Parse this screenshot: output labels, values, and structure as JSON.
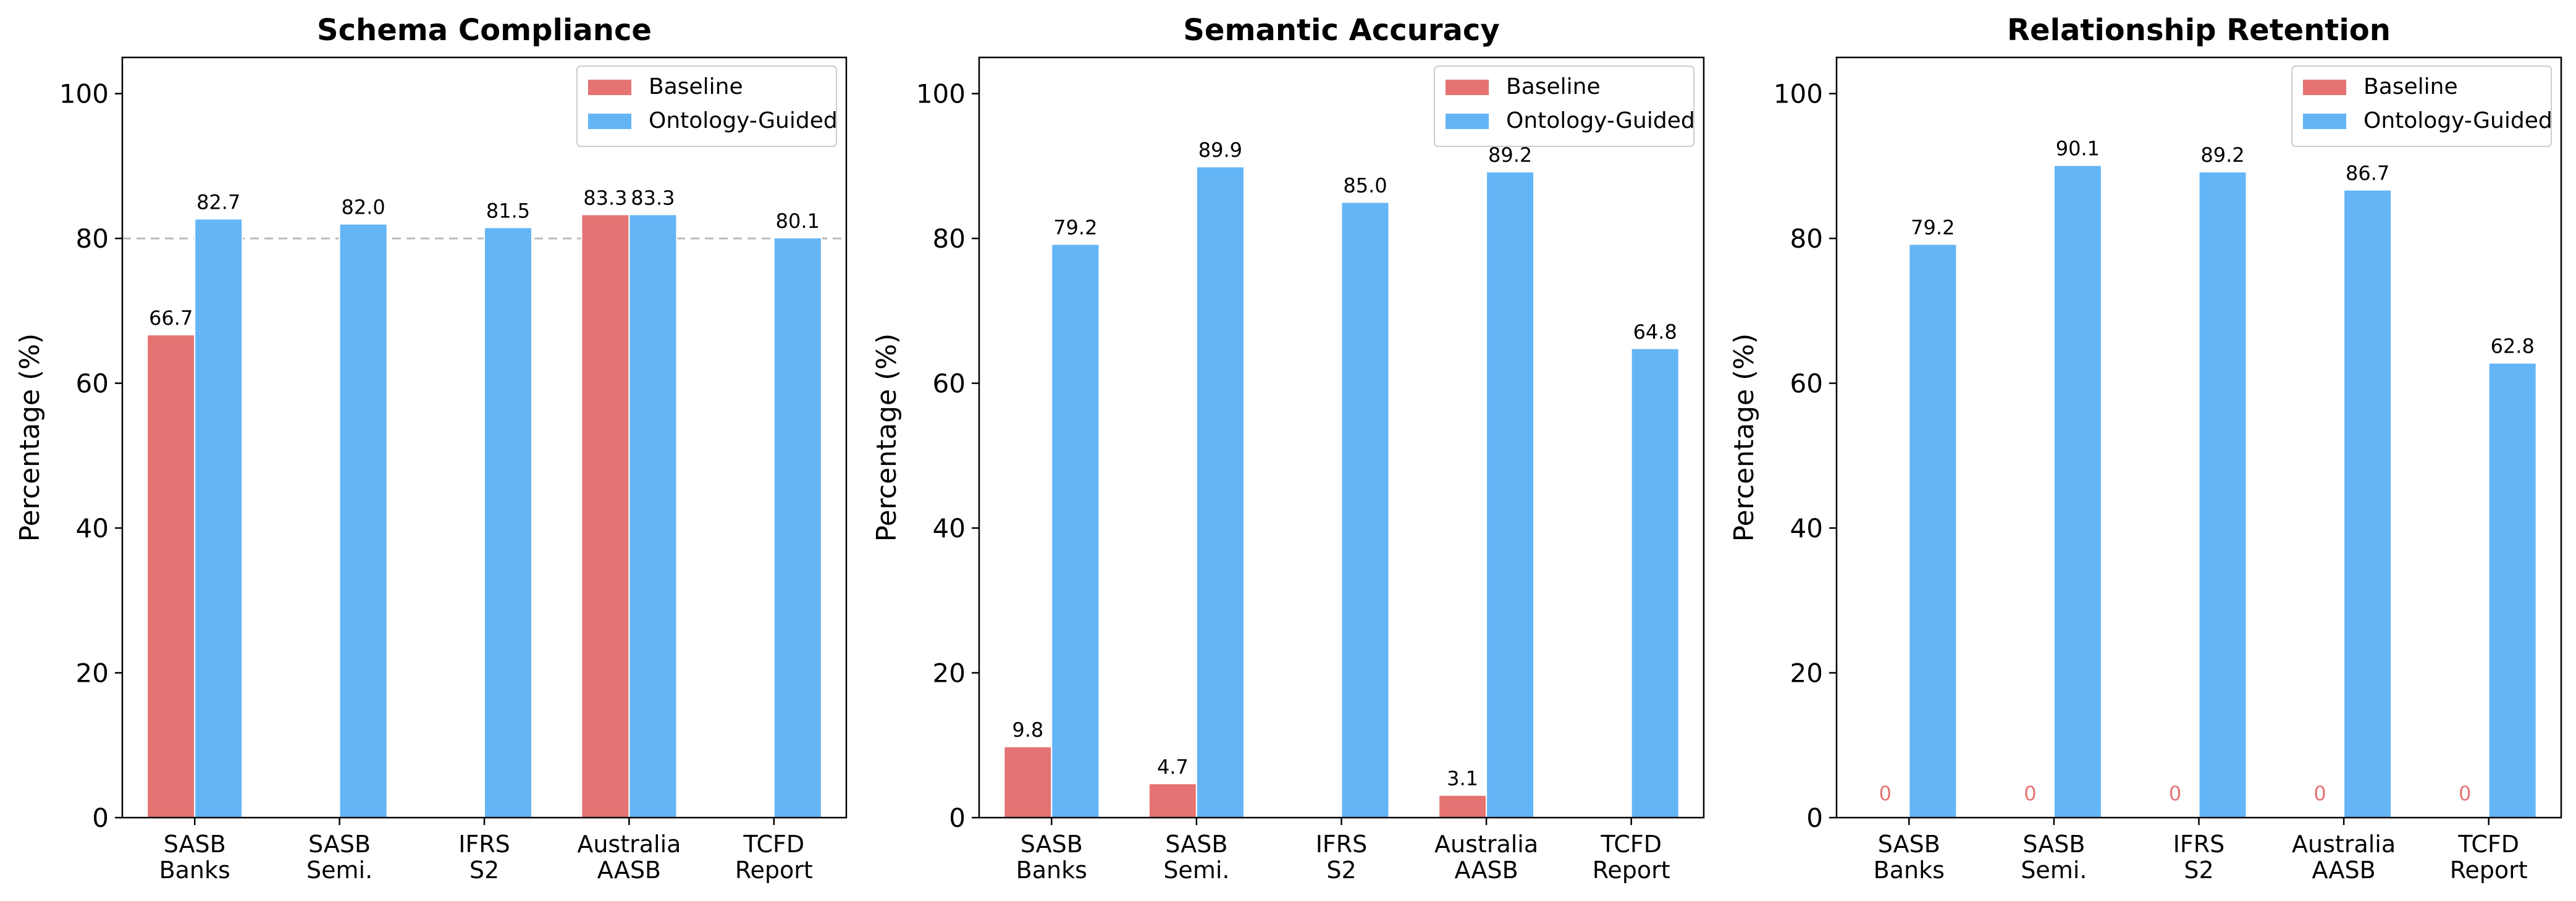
{
  "colors": {
    "baseline": "#e57373",
    "ontology": "#64b5f6",
    "refline": "#bbbbbb"
  },
  "chart_data": [
    {
      "type": "bar",
      "title": "Schema Compliance",
      "ylabel": "Percentage (%)",
      "xlabel": "",
      "ylim": [
        0,
        105
      ],
      "yticks": [
        "0",
        "20",
        "40",
        "60",
        "80",
        "100"
      ],
      "categories": [
        [
          "SASB",
          "Banks"
        ],
        [
          "SASB",
          "Semi."
        ],
        [
          "IFRS",
          "S2"
        ],
        [
          "Australia",
          "AASB"
        ],
        [
          "TCFD",
          "Report"
        ]
      ],
      "reference_line": 80,
      "legend": "top-right",
      "series": [
        {
          "name": "Baseline",
          "values": [
            66.7,
            0,
            0,
            83.3,
            0
          ],
          "labels": [
            "66.7",
            "",
            "",
            "83.3",
            ""
          ]
        },
        {
          "name": "Ontology-Guided",
          "values": [
            82.7,
            82.0,
            81.5,
            83.3,
            80.1
          ],
          "labels": [
            "82.7",
            "82.0",
            "81.5",
            "83.3",
            "80.1"
          ]
        }
      ]
    },
    {
      "type": "bar",
      "title": "Semantic Accuracy",
      "ylabel": "Percentage (%)",
      "xlabel": "",
      "ylim": [
        0,
        105
      ],
      "yticks": [
        "0",
        "20",
        "40",
        "60",
        "80",
        "100"
      ],
      "categories": [
        [
          "SASB",
          "Banks"
        ],
        [
          "SASB",
          "Semi."
        ],
        [
          "IFRS",
          "S2"
        ],
        [
          "Australia",
          "AASB"
        ],
        [
          "TCFD",
          "Report"
        ]
      ],
      "legend": "top-right",
      "series": [
        {
          "name": "Baseline",
          "values": [
            9.8,
            4.7,
            0,
            3.1,
            0
          ],
          "labels": [
            "9.8",
            "4.7",
            "",
            "3.1",
            ""
          ]
        },
        {
          "name": "Ontology-Guided",
          "values": [
            79.2,
            89.9,
            85.0,
            89.2,
            64.8
          ],
          "labels": [
            "79.2",
            "89.9",
            "85.0",
            "89.2",
            "64.8"
          ]
        }
      ]
    },
    {
      "type": "bar",
      "title": "Relationship Retention",
      "ylabel": "Percentage (%)",
      "xlabel": "",
      "ylim": [
        0,
        105
      ],
      "yticks": [
        "0",
        "20",
        "40",
        "60",
        "80",
        "100"
      ],
      "categories": [
        [
          "SASB",
          "Banks"
        ],
        [
          "SASB",
          "Semi."
        ],
        [
          "IFRS",
          "S2"
        ],
        [
          "Australia",
          "AASB"
        ],
        [
          "TCFD",
          "Report"
        ]
      ],
      "legend": "top-right",
      "series": [
        {
          "name": "Baseline",
          "values": [
            0,
            0,
            0,
            0,
            0
          ],
          "labels": [
            "0",
            "0",
            "0",
            "0",
            "0"
          ]
        },
        {
          "name": "Ontology-Guided",
          "values": [
            79.2,
            90.1,
            89.2,
            86.7,
            62.8
          ],
          "labels": [
            "79.2",
            "90.1",
            "89.2",
            "86.7",
            "62.8"
          ]
        }
      ]
    }
  ]
}
